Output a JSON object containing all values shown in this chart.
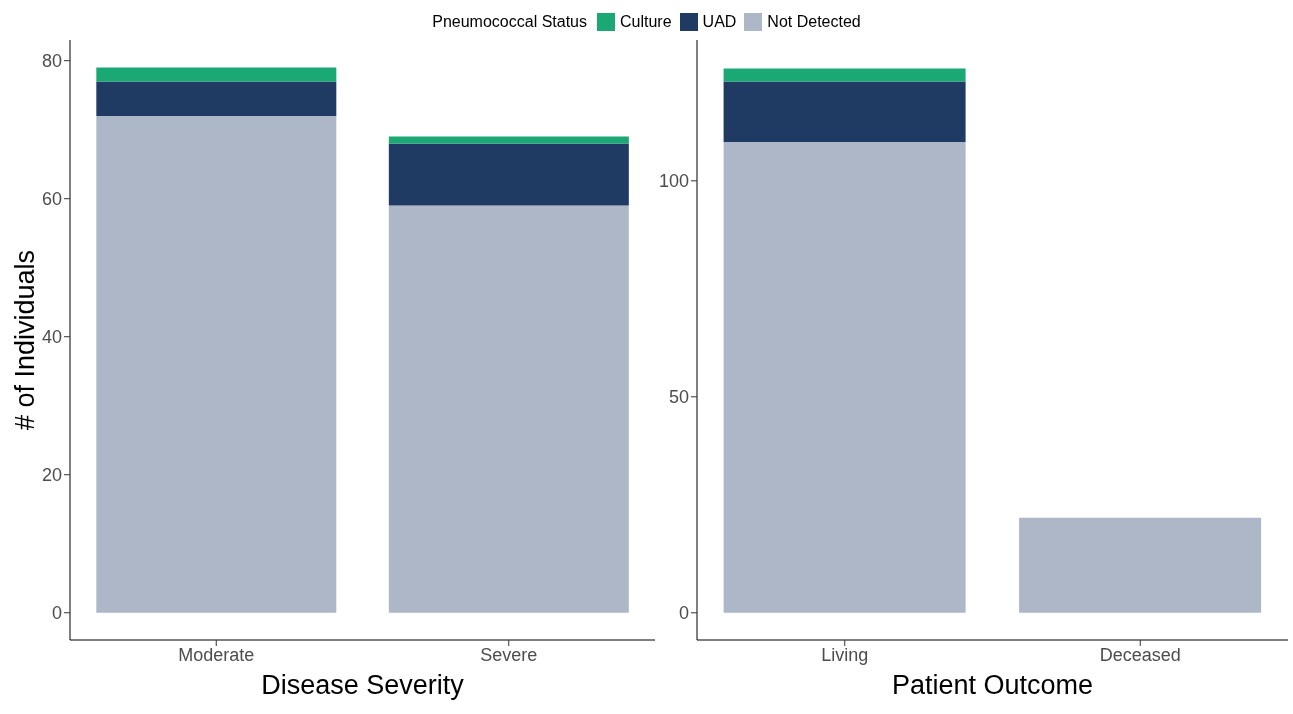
{
  "chart_data": [
    {
      "type": "bar",
      "legend_title": "Pneumococcal Status",
      "legend": "top",
      "xlabel": "Disease Severity",
      "ylabel": "# of Individuals",
      "categories": [
        "Moderate",
        "Severe"
      ],
      "stacked": true,
      "ylim": [
        -3.95,
        83
      ],
      "yticks": [
        0,
        20,
        40,
        60,
        80
      ],
      "grid": false,
      "series": [
        {
          "name": "Not Detected",
          "color": "#aeb7c8",
          "values": [
            72,
            59
          ]
        },
        {
          "name": "UAD",
          "color": "#1f3a63",
          "values": [
            5,
            9
          ]
        },
        {
          "name": "Culture",
          "color": "#1aa874",
          "values": [
            2,
            1
          ]
        }
      ]
    },
    {
      "type": "bar",
      "xlabel": "Patient Outcome",
      "categories": [
        "Living",
        "Deceased"
      ],
      "stacked": true,
      "ylim": [
        -6.3,
        132.6
      ],
      "yticks": [
        0,
        50,
        100
      ],
      "grid": false,
      "series": [
        {
          "color": "#aeb7c8",
          "values": [
            109,
            22
          ]
        },
        {
          "color": "#1f3a63",
          "values": [
            14,
            0
          ]
        },
        {
          "color": "#1aa874",
          "values": [
            3,
            0
          ]
        }
      ]
    }
  ]
}
